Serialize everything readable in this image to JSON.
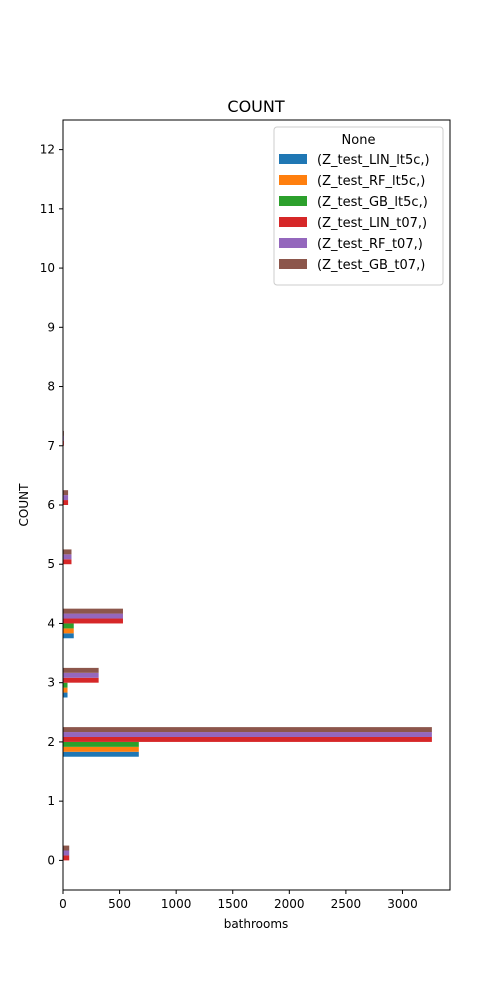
{
  "chart_data": {
    "type": "bar",
    "orientation": "horizontal",
    "title": "COUNT",
    "xlabel": "bathrooms",
    "ylabel": "COUNT",
    "xlim": [
      0,
      3420
    ],
    "ylim": [
      -0.5,
      12.5
    ],
    "x_ticks": [
      0,
      500,
      1000,
      1500,
      2000,
      2500,
      3000
    ],
    "y_ticks": [
      0,
      1,
      2,
      3,
      4,
      5,
      6,
      7,
      8,
      9,
      10,
      11,
      12
    ],
    "categories": [
      0,
      1,
      2,
      3,
      4,
      5,
      6,
      7,
      8,
      9,
      10,
      11,
      12
    ],
    "legend": {
      "title": "None",
      "placement": "upper-right"
    },
    "grid": false,
    "series": [
      {
        "name": "(Z_test_LIN_lt5c,)",
        "color": "#1f77b4",
        "values": [
          0,
          0,
          670,
          40,
          95,
          0,
          0,
          0,
          0,
          0,
          0,
          0,
          0
        ]
      },
      {
        "name": "(Z_test_RF_lt5c,)",
        "color": "#ff7f0e",
        "values": [
          0,
          0,
          670,
          40,
          95,
          0,
          0,
          0,
          0,
          0,
          0,
          0,
          0
        ]
      },
      {
        "name": "(Z_test_GB_lt5c,)",
        "color": "#2ca02c",
        "values": [
          0,
          0,
          670,
          40,
          95,
          0,
          0,
          0,
          0,
          0,
          0,
          0,
          0
        ]
      },
      {
        "name": "(Z_test_LIN_t07,)",
        "color": "#d62728",
        "values": [
          55,
          0,
          3260,
          315,
          530,
          75,
          45,
          8,
          0,
          0,
          0,
          0,
          0
        ]
      },
      {
        "name": "(Z_test_RF_t07,)",
        "color": "#9467bd",
        "values": [
          55,
          0,
          3260,
          315,
          530,
          75,
          45,
          8,
          0,
          0,
          0,
          0,
          0
        ]
      },
      {
        "name": "(Z_test_GB_t07,)",
        "color": "#8c564b",
        "values": [
          55,
          0,
          3260,
          315,
          530,
          75,
          45,
          8,
          0,
          0,
          0,
          0,
          0
        ]
      }
    ]
  }
}
